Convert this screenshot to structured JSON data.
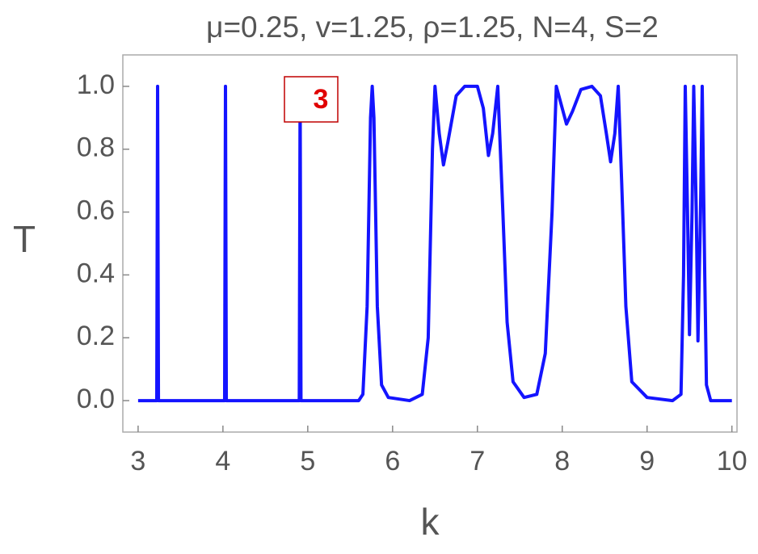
{
  "chart_data": {
    "type": "line",
    "title": "μ=0.25, v=1.25, ρ=1.25, N=4, S=2",
    "x_label": "k",
    "y_label": "T",
    "annotation": "3",
    "xlim": [
      2.82,
      10.06
    ],
    "ylim": [
      -0.1,
      1.1
    ],
    "xticks": [
      3,
      4,
      5,
      6,
      7,
      8,
      9,
      10
    ],
    "yticks": [
      {
        "value": 0,
        "label": "0.0"
      },
      0.2,
      0.4,
      0.6,
      0.8,
      {
        "value": 1,
        "label": "1.0"
      }
    ],
    "series": [
      {
        "name": "T",
        "color": "#1414ff",
        "x": [
          3,
          3.22,
          3.23,
          3.24,
          4.02,
          4.03,
          4.04,
          4.9,
          4.91,
          4.92,
          5.6,
          5.65,
          5.7,
          5.74,
          5.76,
          5.78,
          5.82,
          5.87,
          5.95,
          6.2,
          6.35,
          6.42,
          6.47,
          6.5,
          6.55,
          6.6,
          6.65,
          6.75,
          6.85,
          7.0,
          7.07,
          7.13,
          7.18,
          7.24,
          7.3,
          7.35,
          7.42,
          7.55,
          7.7,
          7.8,
          7.88,
          7.93,
          7.98,
          8.05,
          8.12,
          8.22,
          8.35,
          8.45,
          8.52,
          8.57,
          8.62,
          8.66,
          8.7,
          8.75,
          8.82,
          9.0,
          9.3,
          9.4,
          9.43,
          9.45,
          9.48,
          9.5,
          9.53,
          9.55,
          9.58,
          9.6,
          9.63,
          9.65,
          9.68,
          9.7,
          9.75,
          10
        ],
        "values": [
          0,
          0,
          1,
          0,
          0,
          1,
          0,
          0,
          1,
          0,
          0,
          0.02,
          0.3,
          0.9,
          1,
          0.9,
          0.3,
          0.05,
          0.01,
          0,
          0.02,
          0.2,
          0.8,
          1,
          0.85,
          0.75,
          0.82,
          0.97,
          1,
          1,
          0.93,
          0.78,
          0.85,
          1,
          0.6,
          0.25,
          0.06,
          0.01,
          0.02,
          0.15,
          0.6,
          1,
          0.95,
          0.88,
          0.92,
          0.99,
          1,
          0.97,
          0.85,
          0.76,
          0.85,
          1,
          0.7,
          0.3,
          0.06,
          0.01,
          0,
          0.02,
          0.4,
          1,
          0.55,
          0.21,
          0.6,
          1,
          0.6,
          0.19,
          0.6,
          1,
          0.4,
          0.05,
          0,
          0
        ]
      }
    ]
  }
}
